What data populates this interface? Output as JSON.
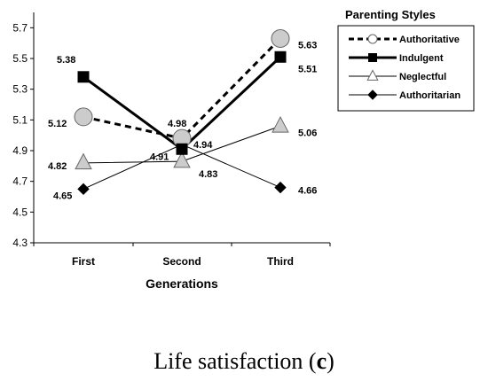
{
  "chart_data": {
    "type": "line",
    "categories": [
      "First",
      "Second",
      "Third"
    ],
    "xlabel": "Generations",
    "ylabel": "",
    "ylim": [
      4.3,
      5.8
    ],
    "yticks": [
      4.3,
      4.5,
      4.7,
      4.9,
      5.1,
      5.3,
      5.5,
      5.7
    ],
    "grid": false,
    "legend": {
      "title": "Parenting Styles",
      "position": "top-right"
    },
    "series": [
      {
        "name": "Authoritative",
        "values": [
          5.12,
          4.98,
          5.63
        ],
        "labels": [
          "5.12",
          "4.98",
          "5.63"
        ],
        "line_style": "dashed",
        "marker": "circle",
        "marker_fill": "#cccccc"
      },
      {
        "name": "Indulgent",
        "values": [
          5.38,
          4.91,
          5.51
        ],
        "labels": [
          "5.38",
          "4.91",
          "5.51"
        ],
        "line_style": "solid-thick",
        "marker": "square",
        "marker_fill": "#000000"
      },
      {
        "name": "Neglectful",
        "values": [
          4.82,
          4.83,
          5.06
        ],
        "labels": [
          "4.82",
          "4.83",
          "5.06"
        ],
        "line_style": "solid-thin",
        "marker": "triangle",
        "marker_fill": "#cccccc"
      },
      {
        "name": "Authoritarian",
        "values": [
          4.65,
          4.94,
          4.66
        ],
        "labels": [
          "4.65",
          "4.94",
          "4.66"
        ],
        "line_style": "solid-thin",
        "marker": "diamond",
        "marker_fill": "#000000"
      }
    ]
  },
  "caption": {
    "prefix": "Life satisfaction (",
    "letter": "c",
    "suffix": ")"
  }
}
